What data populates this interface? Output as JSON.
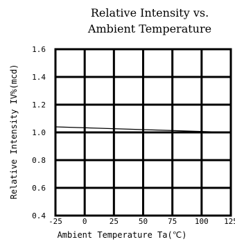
{
  "chart_data": {
    "type": "line",
    "title": "Relative Intensity vs.\nAmbient Temperature",
    "title_lines": [
      "Relative Intensity vs.",
      "Ambient Temperature"
    ],
    "xlabel": "Ambient Temperature Ta(℃)",
    "ylabel": "Relative Intensity IV%(mcd)",
    "xlim": [
      -25,
      125
    ],
    "ylim": [
      0.4,
      1.6
    ],
    "x_ticks": [
      -25,
      0,
      25,
      50,
      75,
      100,
      125
    ],
    "x_tick_labels": [
      "-25",
      "0",
      "25",
      "50",
      "75",
      "100",
      "125"
    ],
    "y_ticks": [
      0.4,
      0.6,
      0.8,
      1.0,
      1.2,
      1.4,
      1.6
    ],
    "y_tick_labels": [
      "0.4",
      "0.6",
      "0.8",
      "1.0",
      "1.2",
      "1.4",
      "1.6"
    ],
    "grid": true,
    "series": [
      {
        "x": [
          -25,
          125
        ],
        "y": [
          1.04,
          1.0
        ]
      }
    ],
    "reference_lines": [
      {
        "y": 1.0
      }
    ],
    "colors": {
      "line": "#000000",
      "grid": "#000000",
      "background": "#ffffff"
    }
  }
}
